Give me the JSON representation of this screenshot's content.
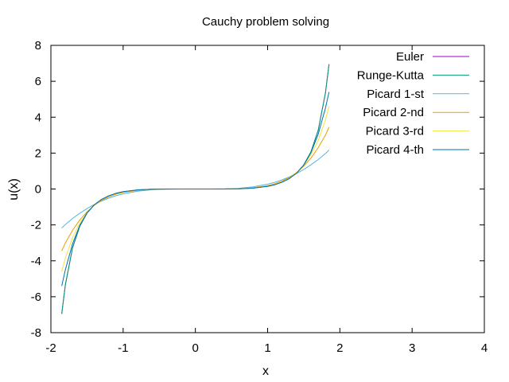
{
  "chart_data": {
    "type": "line",
    "title": "Cauchy problem solving",
    "xlabel": "x",
    "ylabel": "u(x)",
    "xlim": [
      -2,
      4
    ],
    "ylim": [
      -8,
      8
    ],
    "xticks": [
      -2,
      -1,
      0,
      1,
      2,
      3,
      4
    ],
    "yticks": [
      -8,
      -6,
      -4,
      -2,
      0,
      2,
      4,
      6,
      8
    ],
    "grid": false,
    "legend_position": "top-right",
    "x": [
      -1.85,
      -1.8,
      -1.7,
      -1.6,
      -1.5,
      -1.4,
      -1.3,
      -1.2,
      -1.1,
      -1.0,
      -0.8,
      -0.6,
      -0.4,
      -0.2,
      0.0,
      0.2,
      0.4,
      0.6,
      0.8,
      1.0,
      1.1,
      1.2,
      1.3,
      1.4,
      1.5,
      1.6,
      1.7,
      1.8,
      1.85
    ],
    "series": [
      {
        "name": "Euler",
        "color": "#9400d3",
        "values": [
          -6.95,
          -5.34,
          -3.27,
          -2.07,
          -1.34,
          -0.88,
          -0.58,
          -0.38,
          -0.24,
          -0.15,
          -0.05,
          -0.013,
          -0.002,
          0.0,
          0.0,
          0.0,
          0.002,
          0.013,
          0.05,
          0.15,
          0.24,
          0.38,
          0.58,
          0.88,
          1.34,
          2.07,
          3.27,
          5.34,
          6.95
        ]
      },
      {
        "name": "Runge-Kutta",
        "color": "#009e73",
        "values": [
          -6.95,
          -5.34,
          -3.27,
          -2.07,
          -1.34,
          -0.88,
          -0.58,
          -0.38,
          -0.24,
          -0.15,
          -0.05,
          -0.013,
          -0.002,
          0.0,
          0.0,
          0.0,
          0.002,
          0.013,
          0.05,
          0.15,
          0.24,
          0.38,
          0.58,
          0.88,
          1.34,
          2.07,
          3.27,
          5.34,
          6.95
        ]
      },
      {
        "name": "Picard 1-st",
        "color": "#56b4e9",
        "values": [
          -2.17,
          -1.98,
          -1.64,
          -1.35,
          -1.09,
          -0.86,
          -0.67,
          -0.51,
          -0.37,
          -0.27,
          -0.12,
          -0.04,
          -0.01,
          0.0,
          0.0,
          0.0,
          0.01,
          0.04,
          0.12,
          0.27,
          0.37,
          0.51,
          0.67,
          0.86,
          1.09,
          1.35,
          1.64,
          1.98,
          2.17
        ]
      },
      {
        "name": "Picard 2-nd",
        "color": "#e69f00",
        "values": [
          -3.45,
          -3.0,
          -2.3,
          -1.72,
          -1.27,
          -0.91,
          -0.64,
          -0.44,
          -0.29,
          -0.19,
          -0.07,
          -0.015,
          -0.002,
          0.0,
          0.0,
          0.0,
          0.002,
          0.015,
          0.07,
          0.19,
          0.29,
          0.44,
          0.64,
          0.91,
          1.27,
          1.72,
          2.3,
          3.0,
          3.45
        ]
      },
      {
        "name": "Picard 3-rd",
        "color": "#f0e442",
        "values": [
          -4.6,
          -3.85,
          -2.7,
          -1.9,
          -1.31,
          -0.88,
          -0.58,
          -0.38,
          -0.24,
          -0.15,
          -0.05,
          -0.013,
          -0.002,
          0.0,
          0.0,
          0.0,
          0.002,
          0.013,
          0.05,
          0.15,
          0.24,
          0.38,
          0.58,
          0.88,
          1.31,
          1.9,
          2.7,
          3.85,
          4.6
        ]
      },
      {
        "name": "Picard 4-th",
        "color": "#0072b2",
        "values": [
          -5.4,
          -4.5,
          -3.05,
          -2.02,
          -1.33,
          -0.88,
          -0.58,
          -0.38,
          -0.24,
          -0.15,
          -0.05,
          -0.013,
          -0.002,
          0.0,
          0.0,
          0.0,
          0.002,
          0.013,
          0.05,
          0.15,
          0.24,
          0.38,
          0.58,
          0.88,
          1.33,
          2.02,
          3.05,
          4.5,
          5.4
        ]
      }
    ]
  }
}
